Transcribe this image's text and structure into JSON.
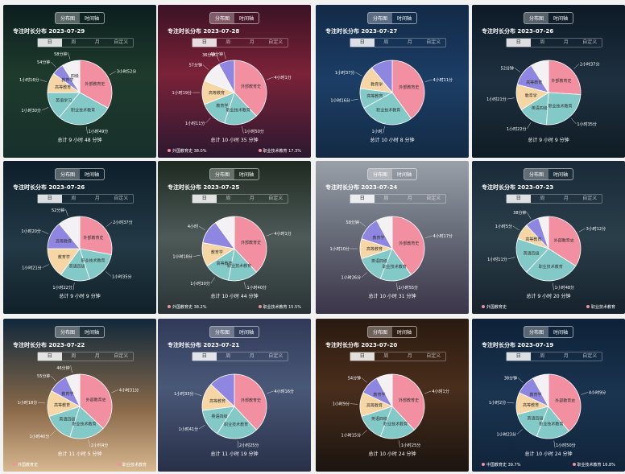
{
  "colors": {
    "pink": "#f28fa0",
    "teal": "#82c9c8",
    "lavender": "#8e86e0",
    "peach": "#f6d6a4",
    "white": "#f4f1f5",
    "lightpink": "#f2c8d4"
  },
  "cards": [
    {
      "toggle_on": "分布图",
      "toggle_off": "时间轴",
      "title": "专注时长分布 2023-07-29",
      "tabs": [
        "日",
        "周",
        "月",
        "自定义"
      ],
      "active_tab": 0,
      "total": "总计 9 小时 48 分钟",
      "bg": "linear-gradient(180deg,#0b1e1e 0%,#1e3a2c 45%,#17302c 100%)",
      "slices": [
        {
          "v": 33,
          "c": "pink"
        },
        {
          "v": 28,
          "c": "teal"
        },
        {
          "v": 14,
          "c": "teal"
        },
        {
          "v": 10,
          "c": "peach"
        },
        {
          "v": 6,
          "c": "lavender"
        },
        {
          "v": 9,
          "c": "white"
        }
      ],
      "pie_labels": [
        "外部教育史",
        "职业技术教育",
        "英语学习",
        "高等教育",
        "教育学",
        "四级"
      ],
      "callouts": [
        "3小时52分",
        "1小时49分",
        "1小时30分",
        "1小时16分",
        "54分钟",
        "58分钟"
      ],
      "legend": []
    },
    {
      "toggle_on": "分布图",
      "toggle_off": "时间轴",
      "title": "专注时长分布 2023-07-28",
      "tabs": [
        "日",
        "周",
        "月",
        "自定义"
      ],
      "active_tab": 0,
      "total": "总计 10 小时 35 分钟",
      "bg": "linear-gradient(180deg,#3b1224 0%,#7b2238 45%,#2c1830 100%)",
      "slices": [
        {
          "v": 38,
          "c": "pink"
        },
        {
          "v": 17,
          "c": "teal"
        },
        {
          "v": 14,
          "c": "teal"
        },
        {
          "v": 12,
          "c": "peach"
        },
        {
          "v": 11,
          "c": "white"
        },
        {
          "v": 8,
          "c": "lavender"
        }
      ],
      "pie_labels": [
        "外部教育史",
        "职业技术教育",
        "教育学",
        "高等教育"
      ],
      "callouts": [
        "4小时1分",
        "1小时50分",
        "1小时11分",
        "1小时19分",
        "57分钟",
        "49分钟",
        "36分钟"
      ],
      "legend": [
        {
          "name": "外国教育史",
          "pct": "38.0%"
        },
        {
          "name": "职业技术教育",
          "pct": "17.3%"
        }
      ]
    },
    {
      "toggle_on": "分布图",
      "toggle_off": "时间轴",
      "title": "专注时长分布 2023-07-27",
      "tabs": [
        "日",
        "周",
        "月",
        "自定义"
      ],
      "active_tab": 0,
      "total": "总计 10 小时 8 分钟",
      "bg": "linear-gradient(180deg,#122a48 0%,#1c3e66 50%,#132a44 100%)",
      "slices": [
        {
          "v": 40,
          "c": "pink"
        },
        {
          "v": 27,
          "c": "teal"
        },
        {
          "v": 10,
          "c": "teal"
        },
        {
          "v": 12,
          "c": "peach"
        },
        {
          "v": 11,
          "c": "lavender"
        }
      ],
      "pie_labels": [
        "外部教育史",
        "职业技术教育",
        "高等教育",
        "教育学"
      ],
      "callouts": [
        "4小时11分",
        "1小时",
        "1小时16分",
        "1小时37分"
      ],
      "legend": []
    },
    {
      "toggle_on": "分布图",
      "toggle_off": "时间轴",
      "title": "专注时长分布 2023-07-26",
      "tabs": [
        "日",
        "周",
        "月",
        "自定义"
      ],
      "active_tab": 0,
      "total": "总计 9 小时 9 分钟",
      "bg": "linear-gradient(180deg,#0d1a26 0%,#1e3040 50%,#0f1c24 100%)",
      "slices": [
        {
          "v": 26,
          "c": "pink"
        },
        {
          "v": 25,
          "c": "teal"
        },
        {
          "v": 15,
          "c": "teal"
        },
        {
          "v": 13,
          "c": "peach"
        },
        {
          "v": 12,
          "c": "lavender"
        },
        {
          "v": 9,
          "c": "white"
        }
      ],
      "pie_labels": [
        "外部教育史",
        "职业技术教育",
        "英语四级",
        "教育学",
        "高等教育"
      ],
      "callouts": [
        "2小时37分",
        "1小时35分",
        "1小时22分",
        "1小时21分",
        "52分钟"
      ],
      "legend": []
    },
    {
      "toggle_on": "分布图",
      "toggle_off": "时间轴",
      "title": "专注时长分布 2023-07-26",
      "tabs": [
        "日",
        "周",
        "月",
        "自定义"
      ],
      "active_tab": 0,
      "total": "总计 9 小时 9 分钟",
      "bg": "linear-gradient(180deg,#0d1e2a 0%,#233a46 55%,#102028 100%)",
      "slices": [
        {
          "v": 28,
          "c": "pink"
        },
        {
          "v": 17,
          "c": "teal"
        },
        {
          "v": 15,
          "c": "teal"
        },
        {
          "v": 15,
          "c": "peach"
        },
        {
          "v": 14,
          "c": "lavender"
        },
        {
          "v": 11,
          "c": "white"
        }
      ],
      "pie_labels": [
        "外部教育史",
        "职业技术教育",
        "英语四级",
        "教育学",
        "高等教育"
      ],
      "callouts": [
        "2小时37分",
        "1小时35分",
        "1小时22分",
        "1小时21分",
        "1小时20分",
        "52分钟"
      ],
      "legend": []
    },
    {
      "toggle_on": "分布图",
      "toggle_off": "时间轴",
      "title": "专注时长分布 2023-07-25",
      "tabs": [
        "日",
        "周",
        "月",
        "自定义"
      ],
      "active_tab": 0,
      "total": "总计 10 小时 44 分钟",
      "bg": "linear-gradient(180deg,#1e2a20 0%,#4e5a58 50%,#2a3436 100%)",
      "slices": [
        {
          "v": 38,
          "c": "pink"
        },
        {
          "v": 15,
          "c": "teal"
        },
        {
          "v": 13,
          "c": "teal"
        },
        {
          "v": 12,
          "c": "peach"
        },
        {
          "v": 12,
          "c": "lavender"
        },
        {
          "v": 10,
          "c": "white"
        }
      ],
      "pie_labels": [
        "外部教育史",
        "职业技术教育",
        "高等教育",
        "教育学"
      ],
      "callouts": [
        "4小时1分",
        "1小时40分",
        "1小时30分",
        "1小时18分",
        "4小时"
      ],
      "legend": [
        {
          "name": "外国教育史",
          "pct": "38.2%"
        },
        {
          "name": "职业技术教育",
          "pct": "15.5%"
        }
      ]
    },
    {
      "toggle_on": "分布图",
      "toggle_off": "时间轴",
      "title": "专注时长分布 2023-07-24",
      "tabs": [
        "日",
        "周",
        "月",
        "自定义"
      ],
      "active_tab": 0,
      "total": "总计 10 小时 31 分钟",
      "bg": "linear-gradient(180deg,#9aa0a8 0%,#6e7480 40%,#3a3448 100%)",
      "slices": [
        {
          "v": 40,
          "c": "pink"
        },
        {
          "v": 16,
          "c": "teal"
        },
        {
          "v": 14,
          "c": "teal"
        },
        {
          "v": 10,
          "c": "peach"
        },
        {
          "v": 12,
          "c": "lavender"
        },
        {
          "v": 8,
          "c": "white"
        }
      ],
      "pie_labels": [
        "外部教育史",
        "职业技术教育",
        "英语四级",
        "高等教育",
        "教育学"
      ],
      "callouts": [
        "4小时17分",
        "1小时55分",
        "1小时26分",
        "1小时10分",
        "58分钟"
      ],
      "legend": []
    },
    {
      "toggle_on": "分布图",
      "toggle_off": "时间轴",
      "title": "专注时长分布 2023-07-23",
      "tabs": [
        "日",
        "周",
        "月",
        "自定义"
      ],
      "active_tab": 0,
      "total": "总计 9 小时 20 分钟",
      "bg": "linear-gradient(180deg,#1a2a38 0%,#2a3e4a 50%,#16222c 100%)",
      "slices": [
        {
          "v": 34,
          "c": "pink"
        },
        {
          "v": 28,
          "c": "teal"
        },
        {
          "v": 18,
          "c": "teal"
        },
        {
          "v": 8,
          "c": "peach"
        },
        {
          "v": 7,
          "c": "lavender"
        },
        {
          "v": 5,
          "c": "white"
        }
      ],
      "pie_labels": [
        "外部教育史",
        "职业技术教育",
        "英语四级",
        "高等教育"
      ],
      "callouts": [
        "3小时12分",
        "1小时48分",
        "1小时11分",
        "1小时5分",
        "38分钟"
      ],
      "legend": [
        {
          "name": "外国教育史",
          "pct": ""
        },
        {
          "name": "职业技术教育",
          "pct": ""
        }
      ]
    },
    {
      "toggle_on": "分布图",
      "toggle_off": "时间轴",
      "title": "专注时长分布 2023-07-22",
      "tabs": [
        "日",
        "周",
        "月",
        "自定义"
      ],
      "active_tab": 0,
      "total": "总计 11 小时 5 分钟",
      "bg": "linear-gradient(180deg,#10283a 0%,#8a6a4a 60%,#d8b890 100%)",
      "slices": [
        {
          "v": 37,
          "c": "pink"
        },
        {
          "v": 18,
          "c": "teal"
        },
        {
          "v": 15,
          "c": "teal"
        },
        {
          "v": 13,
          "c": "peach"
        },
        {
          "v": 10,
          "c": "lavender"
        },
        {
          "v": 7,
          "c": "white"
        }
      ],
      "pie_labels": [
        "外部教育史",
        "职业技术教育",
        "英语四级",
        "高等教育",
        "教育学"
      ],
      "callouts": [
        "4小时31分",
        "2小时4分",
        "1小时40分",
        "1小时18分",
        "55分钟",
        "46分钟"
      ],
      "legend": [
        {
          "name": "外国教育史",
          "pct": ""
        },
        {
          "name": "职业技术教育",
          "pct": ""
        }
      ]
    },
    {
      "toggle_on": "分布图",
      "toggle_off": "时间轴",
      "title": "专注时长分布 2023-07-21",
      "tabs": [
        "日",
        "周",
        "月",
        "自定义"
      ],
      "active_tab": 0,
      "total": "总计 11 小时 19 分钟",
      "bg": "linear-gradient(180deg,#303a58 0%,#4a5878 45%,#283048 100%)",
      "slices": [
        {
          "v": 38,
          "c": "pink"
        },
        {
          "v": 21,
          "c": "teal"
        },
        {
          "v": 14,
          "c": "teal"
        },
        {
          "v": 14,
          "c": "peach"
        },
        {
          "v": 13,
          "c": "lavender"
        }
      ],
      "pie_labels": [
        "外部教育史",
        "职业技术教育",
        "英语四级",
        "高等教育"
      ],
      "callouts": [
        "4小时16分",
        "2小时25分",
        "1小时41分",
        "1小时33分"
      ],
      "legend": []
    },
    {
      "toggle_on": "分布图",
      "toggle_off": "时间轴",
      "title": "专注时长分布 2023-07-20",
      "tabs": [
        "日",
        "周",
        "月",
        "自定义"
      ],
      "active_tab": 0,
      "total": "总计 10 小时 24 分钟",
      "bg": "linear-gradient(180deg,#2a1a10 0%,#4a2e1c 45%,#1a1410 100%)",
      "slices": [
        {
          "v": 38,
          "c": "pink"
        },
        {
          "v": 18,
          "c": "teal"
        },
        {
          "v": 14,
          "c": "teal"
        },
        {
          "v": 12,
          "c": "peach"
        },
        {
          "v": 10,
          "c": "lavender"
        },
        {
          "v": 8,
          "c": "white"
        }
      ],
      "pie_labels": [
        "外部教育史",
        "职业技术教育",
        "英语四级",
        "高等教育",
        "教育学"
      ],
      "callouts": [
        "4小时1分",
        "1小时25分",
        "1小时15分",
        "1小时9分",
        "54分钟"
      ],
      "legend": []
    },
    {
      "toggle_on": "分布图",
      "toggle_off": "时间轴",
      "title": "专注时长分布 2023-07-19",
      "tabs": [
        "日",
        "周",
        "月",
        "自定义"
      ],
      "active_tab": 0,
      "total": "总计 10 小时 24 分钟",
      "bg": "linear-gradient(180deg,#0e2238 0%,#1a3450 50%,#10243a 100%)",
      "slices": [
        {
          "v": 39,
          "c": "pink"
        },
        {
          "v": 17,
          "c": "teal"
        },
        {
          "v": 15,
          "c": "teal"
        },
        {
          "v": 11,
          "c": "peach"
        },
        {
          "v": 10,
          "c": "lavender"
        },
        {
          "v": 8,
          "c": "white"
        }
      ],
      "pie_labels": [
        "外部教育史",
        "职业技术教育",
        "英语四级",
        "高等教育",
        "教育学"
      ],
      "callouts": [
        "4小时9分",
        "1小时50分",
        "1小时23分",
        "1小时2分",
        "38分钟"
      ],
      "legend": [
        {
          "name": "中国教育史",
          "pct": "39.7%"
        },
        {
          "name": "职业技术教育",
          "pct": "16.8%"
        }
      ]
    }
  ]
}
